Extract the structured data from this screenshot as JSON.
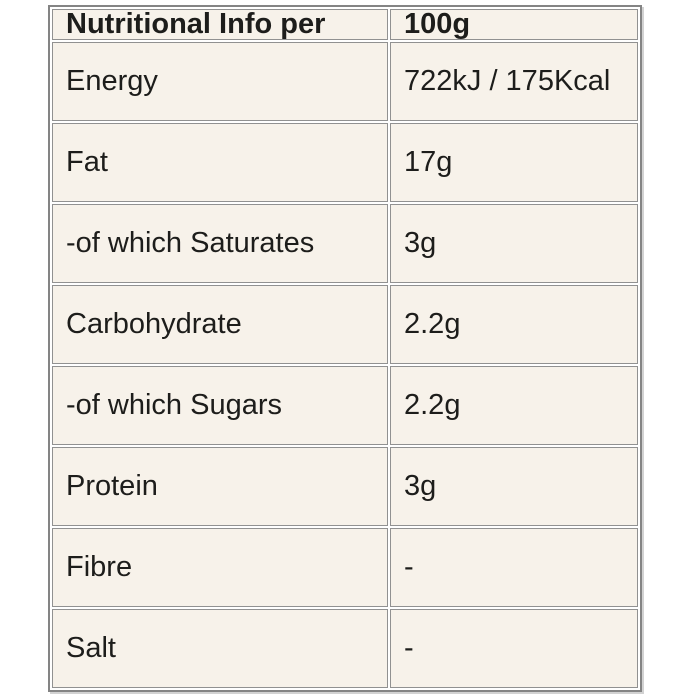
{
  "title": "Nutritional information table",
  "colors": {
    "page_background": "#ffffff",
    "cell_background": "#f7f2ea",
    "border_outer": "#848484",
    "border_inner": "#919191",
    "text": "#1d1d1b",
    "shadow": "#d2d2d2"
  },
  "table": {
    "header": {
      "label": "Nutritional Info per",
      "value": "100g"
    },
    "rows": [
      {
        "label": "Energy",
        "value": "722kJ / 175Kcal"
      },
      {
        "label": "Fat",
        "value": "17g"
      },
      {
        "label": "-of which Saturates",
        "value": "3g"
      },
      {
        "label": "Carbohydrate",
        "value": "2.2g"
      },
      {
        "label": "-of which Sugars",
        "value": "2.2g"
      },
      {
        "label": "Protein",
        "value": "3g"
      },
      {
        "label": "Fibre",
        "value": "-"
      },
      {
        "label": "Salt",
        "value": "-"
      }
    ]
  },
  "chart_data": {
    "type": "table",
    "title": "Nutritional Info per 100g",
    "columns": [
      "Nutritional Info per",
      "100g"
    ],
    "rows": [
      [
        "Energy",
        "722kJ / 175Kcal"
      ],
      [
        "Fat",
        "17g"
      ],
      [
        "-of which Saturates",
        "3g"
      ],
      [
        "Carbohydrate",
        "2.2g"
      ],
      [
        "-of which Sugars",
        "2.2g"
      ],
      [
        "Protein",
        "3g"
      ],
      [
        "Fibre",
        "-"
      ],
      [
        "Salt",
        "-"
      ]
    ]
  }
}
